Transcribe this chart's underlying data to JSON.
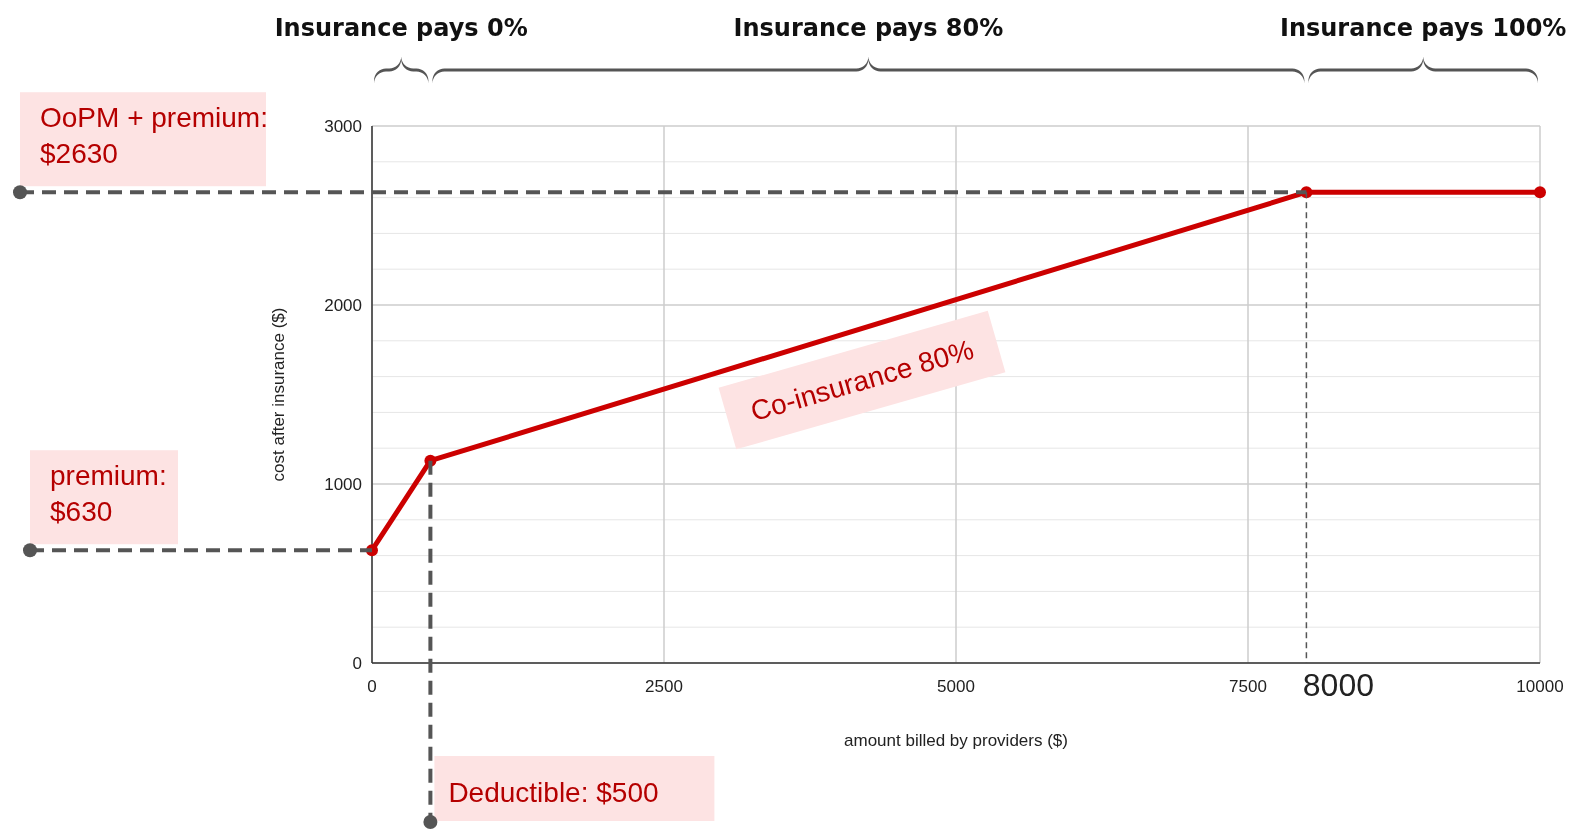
{
  "chart_data": {
    "type": "line",
    "xlabel": "amount billed by providers ($)",
    "ylabel": "cost after insurance ($)",
    "x": [
      0,
      500,
      8000,
      10000
    ],
    "series": [
      {
        "color": "#cc0000",
        "values": [
          630,
          1130,
          2630,
          2630
        ]
      }
    ],
    "xlim": [
      0,
      10000
    ],
    "xticks": [
      0,
      2500,
      5000,
      7500,
      10000
    ],
    "ylim": [
      0,
      3000
    ],
    "yticks": [
      0,
      1000,
      2000,
      3000
    ],
    "grid": true,
    "marker": "circle",
    "ref_lines": [
      {
        "axis": "y",
        "value": 2630,
        "label": "OoPM + premium: $2630",
        "color": "#555555",
        "line_style": "dashed"
      },
      {
        "axis": "y",
        "value": 630,
        "label": "premium: $630",
        "color": "#555555",
        "line_style": "dashed"
      },
      {
        "axis": "x",
        "value": 500,
        "label": "Deductible: $500",
        "color": "#555555",
        "line_style": "dashed"
      },
      {
        "axis": "x",
        "value": 8000,
        "label": "8000",
        "color": "#555555",
        "line_style": "dotted"
      }
    ],
    "annotations": [
      "Insurance pays 0%",
      "Insurance pays 80%",
      "Insurance pays 100%",
      "Co-insurance 80%"
    ]
  }
}
